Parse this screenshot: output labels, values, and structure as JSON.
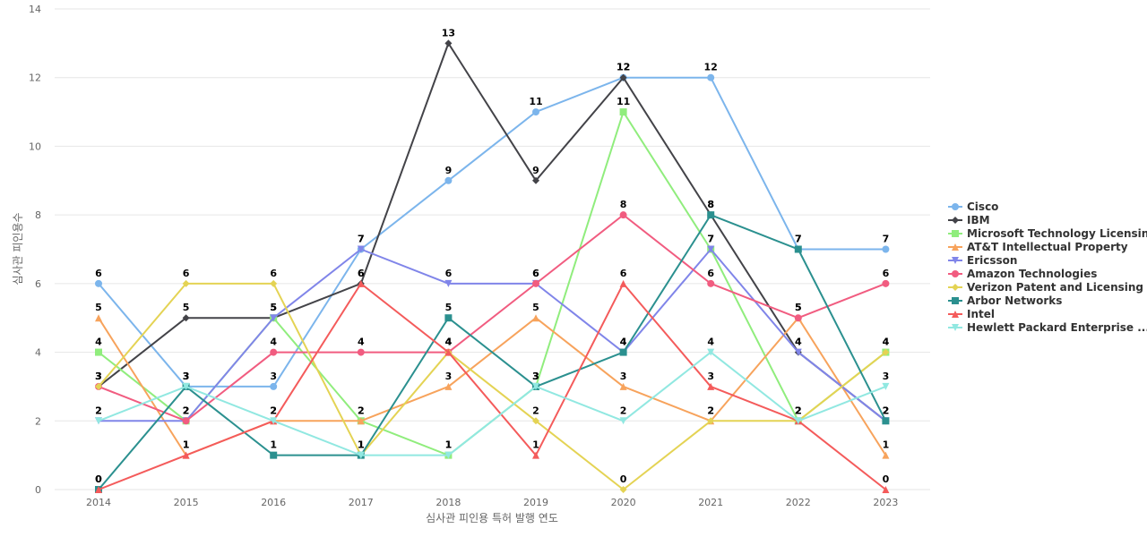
{
  "chart_data": {
    "type": "line",
    "title": "",
    "xlabel": "심사관 피인용 특허 발행 연도",
    "ylabel": "심사관 피인용수",
    "categories": [
      "2014",
      "2015",
      "2016",
      "2017",
      "2018",
      "2019",
      "2020",
      "2021",
      "2022",
      "2023"
    ],
    "ylim": [
      0,
      14
    ],
    "yticks": [
      0,
      2,
      4,
      6,
      8,
      10,
      12,
      14
    ],
    "grid": true,
    "legend_position": "right",
    "series": [
      {
        "name": "Cisco",
        "color": "#7cb5ec",
        "marker": "circle",
        "values": [
          6,
          3,
          3,
          7,
          9,
          11,
          12,
          12,
          7,
          7
        ]
      },
      {
        "name": "IBM",
        "color": "#434348",
        "marker": "diamond",
        "values": [
          3,
          5,
          5,
          6,
          13,
          9,
          12,
          8,
          4,
          2
        ]
      },
      {
        "name": "Microsoft Technology Licensing",
        "color": "#90ed7d",
        "marker": "square",
        "values": [
          4,
          2,
          5,
          2,
          1,
          3,
          11,
          7,
          2,
          4
        ]
      },
      {
        "name": "AT&T Intellectual Property",
        "color": "#f7a35c",
        "marker": "triangle",
        "values": [
          5,
          1,
          2,
          2,
          3,
          5,
          3,
          2,
          5,
          1
        ]
      },
      {
        "name": "Ericsson",
        "color": "#8085e9",
        "marker": "triangle-down",
        "values": [
          2,
          2,
          5,
          7,
          6,
          6,
          4,
          7,
          4,
          2
        ]
      },
      {
        "name": "Amazon Technologies",
        "color": "#f15c80",
        "marker": "circle",
        "values": [
          3,
          2,
          4,
          4,
          4,
          6,
          8,
          6,
          5,
          6
        ]
      },
      {
        "name": "Verizon Patent and Licensing",
        "color": "#e4d354",
        "marker": "diamond",
        "values": [
          3,
          6,
          6,
          1,
          4,
          2,
          0,
          2,
          2,
          4
        ]
      },
      {
        "name": "Arbor Networks",
        "color": "#2b908f",
        "marker": "square",
        "values": [
          0,
          3,
          1,
          1,
          5,
          3,
          4,
          8,
          7,
          2
        ]
      },
      {
        "name": "Intel",
        "color": "#f45b5b",
        "marker": "triangle",
        "values": [
          0,
          1,
          2,
          6,
          4,
          1,
          6,
          3,
          2,
          0
        ]
      },
      {
        "name": "Hewlett Packard Enterprise ...",
        "color": "#91e8e1",
        "marker": "triangle-down",
        "values": [
          2,
          3,
          2,
          1,
          1,
          3,
          2,
          4,
          2,
          3
        ]
      }
    ]
  }
}
